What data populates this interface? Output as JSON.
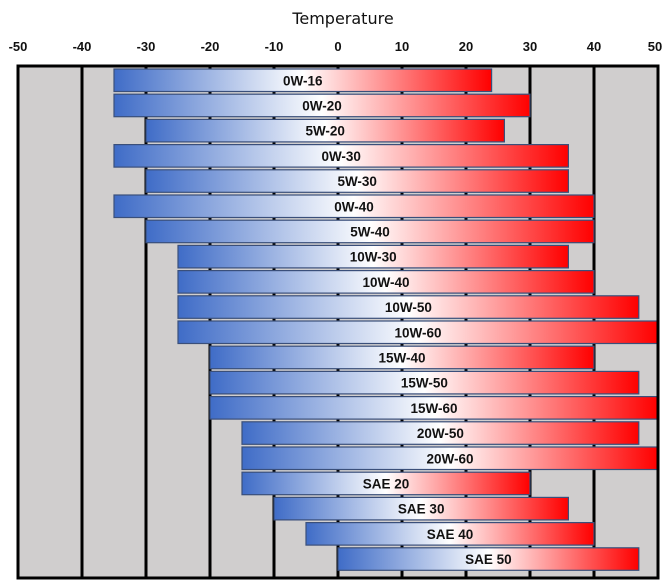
{
  "chart_data": {
    "type": "bar",
    "orientation": "horizontal-range",
    "title": "Temperature",
    "xlabel": "Temperature",
    "ylabel": "",
    "xlim": [
      -50,
      50
    ],
    "xticks": [
      "-50",
      "-40",
      "-30",
      "-20",
      "-10",
      "0",
      "10",
      "20",
      "30",
      "40",
      "50"
    ],
    "xtick_values": [
      -50,
      -40,
      -30,
      -20,
      -10,
      0,
      10,
      20,
      30,
      40,
      50
    ],
    "grid": true,
    "legend": "none",
    "categories": [
      "0W-16",
      "0W-20",
      "5W-20",
      "0W-30",
      "5W-30",
      "0W-40",
      "5W-40",
      "10W-30",
      "10W-40",
      "10W-50",
      "10W-60",
      "15W-40",
      "15W-50",
      "15W-60",
      "20W-50",
      "20W-60",
      "SAE 20",
      "SAE 30",
      "SAE 40",
      "SAE 50"
    ],
    "ranges": [
      {
        "label": "0W-16",
        "min": -35,
        "max": 24
      },
      {
        "label": "0W-20",
        "min": -35,
        "max": 30
      },
      {
        "label": "5W-20",
        "min": -30,
        "max": 26
      },
      {
        "label": "0W-30",
        "min": -35,
        "max": 36
      },
      {
        "label": "5W-30",
        "min": -30,
        "max": 36
      },
      {
        "label": "0W-40",
        "min": -35,
        "max": 40
      },
      {
        "label": "5W-40",
        "min": -30,
        "max": 40
      },
      {
        "label": "10W-30",
        "min": -25,
        "max": 36
      },
      {
        "label": "10W-40",
        "min": -25,
        "max": 40
      },
      {
        "label": "10W-50",
        "min": -25,
        "max": 47
      },
      {
        "label": "10W-60",
        "min": -25,
        "max": 50
      },
      {
        "label": "15W-40",
        "min": -20,
        "max": 40
      },
      {
        "label": "15W-50",
        "min": -20,
        "max": 47
      },
      {
        "label": "15W-60",
        "min": -20,
        "max": 50
      },
      {
        "label": "20W-50",
        "min": -15,
        "max": 47
      },
      {
        "label": "20W-60",
        "min": -15,
        "max": 50
      },
      {
        "label": "SAE 20",
        "min": -15,
        "max": 30
      },
      {
        "label": "SAE 30",
        "min": -10,
        "max": 36
      },
      {
        "label": "SAE 40",
        "min": -5,
        "max": 40
      },
      {
        "label": "SAE 50",
        "min": 0,
        "max": 47
      }
    ],
    "colors": {
      "cold": "#3f6cc7",
      "mid": "#ffffff",
      "hot": "#ff0000",
      "bar_border": "#3a4f7a",
      "plot_background": "#d0cece",
      "grid": "#000000"
    }
  }
}
